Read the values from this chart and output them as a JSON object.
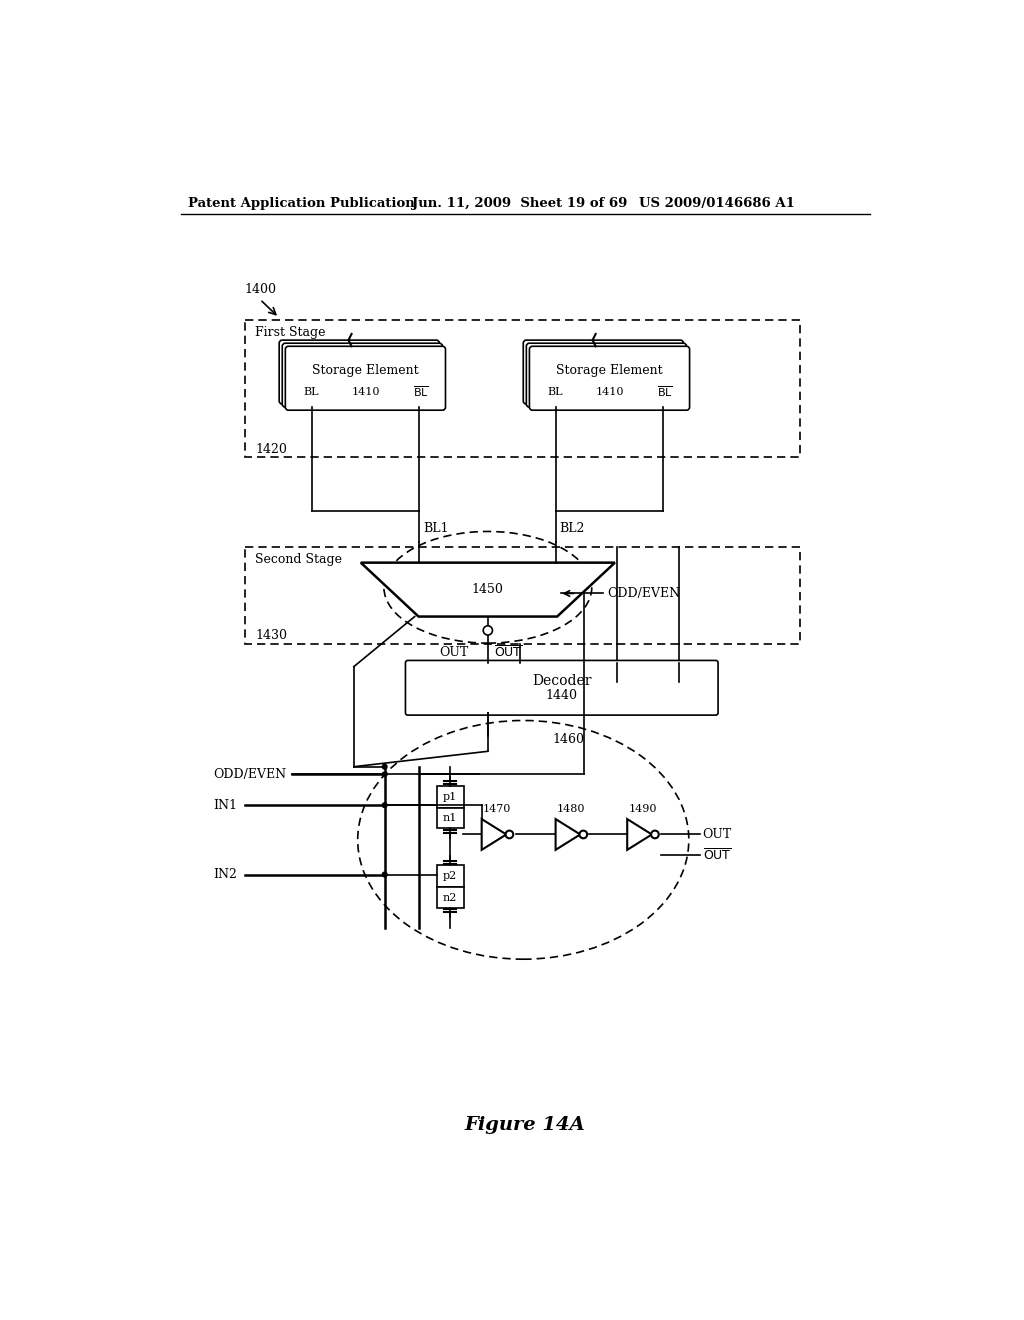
{
  "bg_color": "#ffffff",
  "header_left": "Patent Application Publication",
  "header_mid": "Jun. 11, 2009  Sheet 19 of 69",
  "header_right": "US 2009/0146686 A1",
  "figure_label": "Figure 14A"
}
